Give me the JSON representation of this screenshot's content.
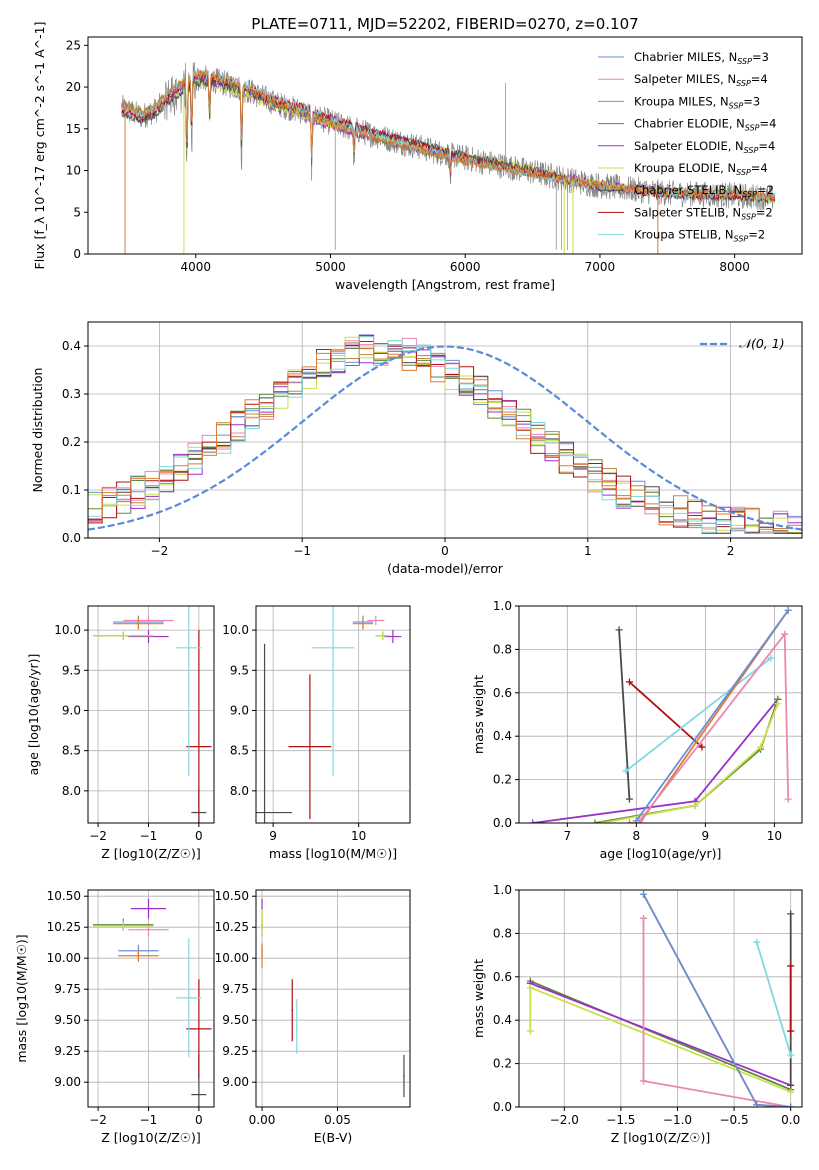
{
  "figure": {
    "title": "PLATE=0711, MJD=52202, FIBERID=0270, z=0.107"
  },
  "colors": {
    "chabrier_miles": "#6a8fd8",
    "salpeter_miles": "#ec86b3",
    "kroupa_miles": "#c4883a",
    "chabrier_elodie": "#5b8a3a",
    "salpeter_elodie": "#9b30c8",
    "kroupa_elodie": "#c8e04a",
    "chabrier_stelib": "#4a4a4a",
    "salpeter_stelib": "#b01010",
    "kroupa_stelib": "#80d8e0",
    "orange_fit": "#e07a30",
    "data": "#888888",
    "normal": "#5b8ad8",
    "grid": "#b0b0b0"
  },
  "chart_data": [
    {
      "id": "spectrum",
      "type": "line",
      "title": "PLATE=0711, MJD=52202, FIBERID=0270, z=0.107",
      "xlabel": "wavelength [Angstrom, rest frame]",
      "ylabel": "Flux [f_λ 10^-17 erg cm^-2 s^-1 A^-1]",
      "xlim": [
        3200,
        8500
      ],
      "ylim": [
        0,
        26
      ],
      "xticks": [
        4000,
        5000,
        6000,
        7000,
        8000
      ],
      "yticks": [
        0,
        5,
        10,
        15,
        20,
        25
      ],
      "grid": false,
      "legend_position": "top-right",
      "legend": [
        {
          "label": "Chabrier MILES, N",
          "sub": "SSP",
          "suffix": "=3",
          "color": "#6a8fd8"
        },
        {
          "label": "Salpeter MILES, N",
          "sub": "SSP",
          "suffix": "=4",
          "color": "#ec86b3"
        },
        {
          "label": "Kroupa MILES, N",
          "sub": "SSP",
          "suffix": "=3",
          "color": "#c4883a"
        },
        {
          "label": "Chabrier ELODIE, N",
          "sub": "SSP",
          "suffix": "=4",
          "color": "#5b8a3a"
        },
        {
          "label": "Salpeter ELODIE, N",
          "sub": "SSP",
          "suffix": "=4",
          "color": "#9b30c8"
        },
        {
          "label": "Kroupa ELODIE, N",
          "sub": "SSP",
          "suffix": "=4",
          "color": "#c8e04a"
        },
        {
          "label": "Chabrier STELIB, N",
          "sub": "SSP",
          "suffix": "=2",
          "color": "#4a4a4a"
        },
        {
          "label": "Salpeter STELIB, N",
          "sub": "SSP",
          "suffix": "=2",
          "color": "#b01010"
        },
        {
          "label": "Kroupa STELIB, N",
          "sub": "SSP",
          "suffix": "=2",
          "color": "#80d8e0"
        }
      ],
      "continuum": {
        "x": [
          3450,
          3600,
          3700,
          3800,
          3900,
          4000,
          4100,
          4200,
          4400,
          4600,
          4800,
          5000,
          5200,
          5500,
          5800,
          6000,
          6300,
          6600,
          6800,
          7000,
          7200,
          7500,
          8000,
          8300
        ],
        "y": [
          17.5,
          16.5,
          17.2,
          18.8,
          20.0,
          21.0,
          21.0,
          20.5,
          19.5,
          18.0,
          17.0,
          15.8,
          14.8,
          13.5,
          12.2,
          11.5,
          10.5,
          9.5,
          8.8,
          8.2,
          7.8,
          7.3,
          7.0,
          6.7
        ]
      },
      "absorption": [
        {
          "x": 3934,
          "depth": 10.0
        },
        {
          "x": 3969,
          "depth": 8.0
        },
        {
          "x": 4102,
          "depth": 6.0
        },
        {
          "x": 4340,
          "depth": 9.0
        },
        {
          "x": 4861,
          "depth": 6.5
        },
        {
          "x": 5175,
          "depth": 4.0
        },
        {
          "x": 5890,
          "depth": 3.0
        }
      ],
      "data_spikes": [
        {
          "x": 5035,
          "y": 0.5
        },
        {
          "x": 6300,
          "y": 20.5
        },
        {
          "x": 6676,
          "y": 0.5
        },
        {
          "x": 6716,
          "y": 0.5
        },
        {
          "x": 6760,
          "y": 0.5
        }
      ],
      "model_dropouts": [
        {
          "x": 3475,
          "color": "#e07a30"
        },
        {
          "x": 3912,
          "color": "#c8e04a"
        },
        {
          "x": 6735,
          "color": "#c8e04a"
        },
        {
          "x": 6800,
          "color": "#c8e04a"
        },
        {
          "x": 7430,
          "color": "#e07a30"
        }
      ]
    },
    {
      "id": "residuals",
      "type": "step",
      "xlabel": "(data-model)/error",
      "ylabel": "Normed distribution",
      "xlim": [
        -2.5,
        2.5
      ],
      "ylim": [
        0,
        0.45
      ],
      "xticks": [
        -2,
        -1,
        0,
        1,
        2
      ],
      "yticks": [
        0.0,
        0.1,
        0.2,
        0.3,
        0.4
      ],
      "grid": true,
      "legend_position": "top-right",
      "normal_label": "𝒩(0, 1)",
      "bin_width": 0.1,
      "peak_center": -0.45,
      "peak_height": 0.37,
      "peak_sigma": 0.95
    },
    {
      "id": "age_vs_z",
      "type": "errorbar",
      "xlabel": "Z [log10(Z/Z☉)]",
      "ylabel": "age [log10(age/yr)]",
      "xlim": [
        -2.2,
        0.3
      ],
      "ylim": [
        7.6,
        10.3
      ],
      "xticks": [
        -2,
        -1,
        0
      ],
      "yticks": [
        8.0,
        8.5,
        9.0,
        9.5,
        10.0
      ],
      "grid": true,
      "points": [
        {
          "x": -1.2,
          "y": 10.1,
          "xerr": 0.5,
          "yerr": 0.08,
          "color": "#6a8fd8"
        },
        {
          "x": -1.0,
          "y": 10.12,
          "xerr": 0.5,
          "yerr": 0.06,
          "color": "#ec86b3"
        },
        {
          "x": -1.2,
          "y": 10.08,
          "xerr": 0.5,
          "yerr": 0.07,
          "color": "#e07a30"
        },
        {
          "x": -1.5,
          "y": 9.93,
          "xerr": 0.6,
          "yerr": 0.05,
          "color": "#5b8a3a"
        },
        {
          "x": -1.0,
          "y": 9.92,
          "xerr": 0.4,
          "yerr": 0.08,
          "color": "#9b30c8"
        },
        {
          "x": -1.5,
          "y": 9.93,
          "xerr": 0.6,
          "yerr": 0.05,
          "color": "#c8e04a"
        },
        {
          "x": 0.0,
          "y": 7.73,
          "xerr": 0.15,
          "yerr": 0.3,
          "color": "#4a4a4a"
        },
        {
          "x": 0.0,
          "y": 8.55,
          "xerr": 0.25,
          "yerr": 1.45,
          "color": "#b01010"
        },
        {
          "x": -0.2,
          "y": 9.78,
          "xerr": 0.25,
          "yerr": 1.6,
          "color": "#80d8e0"
        }
      ]
    },
    {
      "id": "age_vs_mass",
      "type": "errorbar",
      "xlabel": "mass [log10(M/M☉)]",
      "ylabel": "",
      "xlim": [
        8.8,
        10.6
      ],
      "ylim": [
        7.6,
        10.3
      ],
      "xticks": [
        9,
        10
      ],
      "yticks": [
        8.0,
        8.5,
        9.0,
        9.5,
        10.0
      ],
      "grid": true,
      "points": [
        {
          "x": 10.05,
          "y": 10.1,
          "xerr": 0.12,
          "yerr": 0.08,
          "color": "#6a8fd8"
        },
        {
          "x": 10.2,
          "y": 10.12,
          "xerr": 0.1,
          "yerr": 0.06,
          "color": "#ec86b3"
        },
        {
          "x": 10.05,
          "y": 10.08,
          "xerr": 0.12,
          "yerr": 0.07,
          "color": "#e07a30"
        },
        {
          "x": 10.28,
          "y": 9.93,
          "xerr": 0.08,
          "yerr": 0.05,
          "color": "#5b8a3a"
        },
        {
          "x": 10.4,
          "y": 9.92,
          "xerr": 0.1,
          "yerr": 0.08,
          "color": "#9b30c8"
        },
        {
          "x": 10.28,
          "y": 9.93,
          "xerr": 0.08,
          "yerr": 0.05,
          "color": "#c8e04a"
        },
        {
          "x": 8.9,
          "y": 7.73,
          "xerr": 0.32,
          "yerr": 2.1,
          "color": "#4a4a4a"
        },
        {
          "x": 9.43,
          "y": 8.55,
          "xerr": 0.25,
          "yerr": 0.9,
          "color": "#b01010"
        },
        {
          "x": 9.7,
          "y": 9.78,
          "xerr": 0.25,
          "yerr": 1.6,
          "color": "#80d8e0"
        }
      ]
    },
    {
      "id": "mass_weight_vs_age",
      "type": "line",
      "xlabel": "age [log10(age/yr)]",
      "ylabel": "mass weight",
      "xlim": [
        6.3,
        10.4
      ],
      "ylim": [
        0,
        1
      ],
      "xticks": [
        7,
        8,
        9,
        10
      ],
      "yticks": [
        0.0,
        0.2,
        0.4,
        0.6,
        0.8,
        1.0
      ],
      "grid": true,
      "series": [
        {
          "color": "#9b30c8",
          "x": [
            6.5,
            8.85,
            10.05
          ],
          "y": [
            0.0,
            0.1,
            0.57
          ]
        },
        {
          "color": "#5b8a3a",
          "x": [
            7.4,
            8.85,
            9.8,
            10.05
          ],
          "y": [
            0.0,
            0.08,
            0.34,
            0.57
          ]
        },
        {
          "color": "#c8e04a",
          "x": [
            7.5,
            8.85,
            9.8,
            10.05
          ],
          "y": [
            0.0,
            0.08,
            0.35,
            0.55
          ]
        },
        {
          "color": "#4a4a4a",
          "x": [
            7.75,
            7.9
          ],
          "y": [
            0.89,
            0.11
          ]
        },
        {
          "color": "#b01010",
          "x": [
            7.9,
            8.95
          ],
          "y": [
            0.65,
            0.35
          ]
        },
        {
          "color": "#80d8e0",
          "x": [
            7.85,
            9.95
          ],
          "y": [
            0.24,
            0.76
          ]
        },
        {
          "color": "#e07a30",
          "x": [
            7.9,
            8.05,
            10.2
          ],
          "y": [
            0.0,
            0.0,
            0.98
          ]
        },
        {
          "color": "#ec86b3",
          "x": [
            8.05,
            10.15,
            10.2
          ],
          "y": [
            0.01,
            0.87,
            0.11
          ]
        },
        {
          "color": "#6a8fd8",
          "x": [
            8.0,
            10.2
          ],
          "y": [
            0.01,
            0.98
          ]
        }
      ]
    },
    {
      "id": "mass_vs_z",
      "type": "errorbar",
      "xlabel": "Z [log10(Z/Z☉)]",
      "ylabel": "mass [log10(M/M☉)]",
      "xlim": [
        -2.2,
        0.3
      ],
      "ylim": [
        8.8,
        10.55
      ],
      "xticks": [
        -2,
        -1,
        0
      ],
      "yticks": [
        9.0,
        9.25,
        9.5,
        9.75,
        10.0,
        10.25,
        10.5
      ],
      "grid": true,
      "points": [
        {
          "x": -1.2,
          "y": 10.06,
          "xerr": 0.4,
          "yerr": 0.05,
          "color": "#6a8fd8"
        },
        {
          "x": -1.0,
          "y": 10.23,
          "xerr": 0.4,
          "yerr": 0.05,
          "color": "#ec86b3"
        },
        {
          "x": -1.2,
          "y": 10.02,
          "xerr": 0.4,
          "yerr": 0.05,
          "color": "#e07a30"
        },
        {
          "x": -1.5,
          "y": 10.27,
          "xerr": 0.6,
          "yerr": 0.05,
          "color": "#5b8a3a"
        },
        {
          "x": -1.0,
          "y": 10.4,
          "xerr": 0.35,
          "yerr": 0.08,
          "color": "#9b30c8"
        },
        {
          "x": -1.5,
          "y": 10.26,
          "xerr": 0.6,
          "yerr": 0.04,
          "color": "#c8e04a"
        },
        {
          "x": 0.0,
          "y": 8.9,
          "xerr": 0.15,
          "yerr": 0.32,
          "color": "#4a4a4a"
        },
        {
          "x": 0.0,
          "y": 9.43,
          "xerr": 0.25,
          "yerr": 0.4,
          "color": "#b01010"
        },
        {
          "x": -0.2,
          "y": 9.68,
          "xerr": 0.25,
          "yerr": 0.48,
          "color": "#80d8e0"
        }
      ]
    },
    {
      "id": "mass_vs_ebv",
      "type": "errorbar",
      "xlabel": "E(B-V)",
      "ylabel": "",
      "xlim": [
        -0.004,
        0.098
      ],
      "ylim": [
        8.8,
        10.55
      ],
      "xticks": [
        0.0,
        0.05
      ],
      "yticks": [
        9.0,
        9.25,
        9.5,
        9.75,
        10.0,
        10.25,
        10.5
      ],
      "grid": true,
      "points": [
        {
          "x": 0.0,
          "y": 10.06,
          "xerr": 0.0005,
          "yerr": 0.05,
          "color": "#6a8fd8"
        },
        {
          "x": 0.0,
          "y": 10.23,
          "xerr": 0.0005,
          "yerr": 0.05,
          "color": "#ec86b3"
        },
        {
          "x": 0.0,
          "y": 10.02,
          "xerr": 0.0005,
          "yerr": 0.1,
          "color": "#e07a30"
        },
        {
          "x": 0.0,
          "y": 10.27,
          "xerr": 0.0005,
          "yerr": 0.05,
          "color": "#5b8a3a"
        },
        {
          "x": 0.0,
          "y": 10.4,
          "xerr": 0.0005,
          "yerr": 0.08,
          "color": "#9b30c8"
        },
        {
          "x": 0.0,
          "y": 10.3,
          "xerr": 0.0005,
          "yerr": 0.1,
          "color": "#c8e04a"
        },
        {
          "x": 0.094,
          "y": 9.05,
          "xerr": 0.0005,
          "yerr": 0.17,
          "color": "#4a4a4a"
        },
        {
          "x": 0.02,
          "y": 9.58,
          "xerr": 0.0005,
          "yerr": 0.25,
          "color": "#b01010"
        },
        {
          "x": 0.023,
          "y": 9.45,
          "xerr": 0.0005,
          "yerr": 0.22,
          "color": "#80d8e0"
        }
      ]
    },
    {
      "id": "mass_weight_vs_z",
      "type": "line",
      "xlabel": "Z [log10(Z/Z☉)]",
      "ylabel": "mass weight",
      "xlim": [
        -2.4,
        0.1
      ],
      "ylim": [
        0,
        1
      ],
      "xticks": [
        -2.0,
        -1.5,
        -1.0,
        -0.5,
        0.0
      ],
      "yticks": [
        0.0,
        0.2,
        0.4,
        0.6,
        0.8,
        1.0
      ],
      "grid": true,
      "series": [
        {
          "color": "#5b8a3a",
          "x": [
            -2.3,
            0.0
          ],
          "y": [
            0.58,
            0.08
          ]
        },
        {
          "color": "#9b30c8",
          "x": [
            -2.3,
            0.0
          ],
          "y": [
            0.57,
            0.1
          ]
        },
        {
          "color": "#c8e04a",
          "x": [
            -2.3,
            -2.3,
            0.0
          ],
          "y": [
            0.35,
            0.55,
            0.07
          ]
        },
        {
          "color": "#4a4a4a",
          "x": [
            0.0,
            0.0
          ],
          "y": [
            0.89,
            0.1
          ]
        },
        {
          "color": "#b01010",
          "x": [
            0.0,
            0.0
          ],
          "y": [
            0.65,
            0.35
          ]
        },
        {
          "color": "#80d8e0",
          "x": [
            -0.3,
            0.0
          ],
          "y": [
            0.76,
            0.24
          ]
        },
        {
          "color": "#ec86b3",
          "x": [
            -1.3,
            -1.3,
            0.0
          ],
          "y": [
            0.87,
            0.12,
            0.0
          ]
        },
        {
          "color": "#e07a30",
          "x": [
            -1.3,
            -0.3,
            0.0
          ],
          "y": [
            0.98,
            0.01,
            0.0
          ]
        },
        {
          "color": "#6a8fd8",
          "x": [
            -1.3,
            -0.3,
            0.0
          ],
          "y": [
            0.98,
            0.01,
            0.0
          ]
        }
      ]
    }
  ]
}
